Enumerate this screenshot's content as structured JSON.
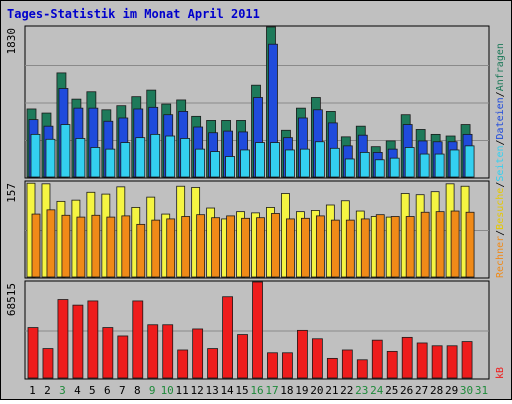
{
  "chart_data": {
    "title": "Tages-Statistik im Monat April 2011",
    "type": "bar",
    "categories": [
      "1",
      "2",
      "3",
      "4",
      "5",
      "6",
      "7",
      "8",
      "9",
      "10",
      "11",
      "12",
      "13",
      "14",
      "15",
      "16",
      "17",
      "18",
      "19",
      "20",
      "21",
      "22",
      "23",
      "24",
      "25",
      "26",
      "27",
      "28",
      "29",
      "30",
      "31"
    ],
    "weekend_days": [
      "3",
      "9",
      "10",
      "16",
      "17",
      "23",
      "24",
      "30",
      "31"
    ],
    "panels": [
      {
        "id": "top",
        "ymax_label": "1830",
        "ymax": 1830,
        "series": [
          {
            "name": "Anfragen",
            "color": "#1e7a5a",
            "values": [
              830,
              780,
              1270,
              950,
              1040,
              820,
              870,
              980,
              1060,
              890,
              940,
              740,
              690,
              690,
              690,
              1120,
              1830,
              570,
              840,
              970,
              800,
              490,
              620,
              370,
              440,
              760,
              580,
              520,
              500,
              640,
              null
            ]
          },
          {
            "name": "Dateien",
            "color": "#1f4bdc",
            "values": [
              700,
              620,
              1080,
              840,
              840,
              680,
              720,
              830,
              850,
              760,
              800,
              610,
              540,
              560,
              550,
              970,
              1620,
              480,
              720,
              820,
              660,
              380,
              510,
              300,
              340,
              640,
              440,
              430,
              430,
              520,
              null
            ]
          },
          {
            "name": "Seiten",
            "color": "#33d0f0",
            "values": [
              520,
              460,
              640,
              470,
              360,
              340,
              420,
              480,
              520,
              500,
              470,
              340,
              310,
              250,
              330,
              420,
              420,
              330,
              340,
              430,
              350,
              220,
              300,
              210,
              230,
              360,
              280,
              280,
              330,
              380,
              null
            ]
          }
        ]
      },
      {
        "id": "middle",
        "ymax_label": "157",
        "ymax": 157,
        "series": [
          {
            "name": "Besuche",
            "color": "#f5f542",
            "values": [
              155,
              154,
              125,
              127,
              140,
              137,
              149,
              115,
              132,
              104,
              150,
              148,
              114,
              96,
              108,
              106,
              115,
              138,
              108,
              110,
              119,
              126,
              109,
              100,
              99,
              138,
              136,
              141,
              154,
              150,
              null
            ]
          },
          {
            "name": "Rechner",
            "color": "#f08a18",
            "values": [
              104,
              111,
              102,
              99,
              102,
              99,
              101,
              87,
              94,
              96,
              100,
              103,
              98,
              101,
              97,
              98,
              105,
              96,
              97,
              101,
              94,
              94,
              96,
              103,
              100,
              100,
              107,
              108,
              109,
              107,
              null
            ]
          }
        ]
      },
      {
        "id": "bottom",
        "ymax_label": "68515",
        "ymax": 68515,
        "series": [
          {
            "name": "kB",
            "color": "#ee1c1c",
            "values": [
              36000,
              21000,
              56000,
              52000,
              55000,
              36000,
              30000,
              55000,
              38000,
              38000,
              20000,
              35000,
              21000,
              58000,
              31000,
              68515,
              18000,
              18000,
              34000,
              28000,
              14000,
              20000,
              13000,
              27000,
              19000,
              29000,
              25000,
              23000,
              23000,
              26000,
              null
            ]
          }
        ]
      }
    ],
    "right_labels": [
      {
        "text": "Anfragen",
        "color": "#1e7a5a"
      },
      {
        "text": "/",
        "color": "#000000"
      },
      {
        "text": "Dateien",
        "color": "#1f4bdc"
      },
      {
        "text": "/",
        "color": "#000000"
      },
      {
        "text": "Seiten",
        "color": "#33d0f0"
      },
      {
        "text": "/",
        "color": "#000000"
      },
      {
        "text": "Besuche",
        "color": "#e6c800"
      },
      {
        "text": "/",
        "color": "#000000"
      },
      {
        "text": "Rechner",
        "color": "#f08a18"
      },
      {
        "text": "kB",
        "color": "#ee1c1c"
      }
    ],
    "colors": {
      "title": "#0000cc",
      "weekday_label": "#000000",
      "weekend_label": "#1e8a3a",
      "plot_bg": "#c0c0c0",
      "grid": "#8a8a8a"
    }
  }
}
